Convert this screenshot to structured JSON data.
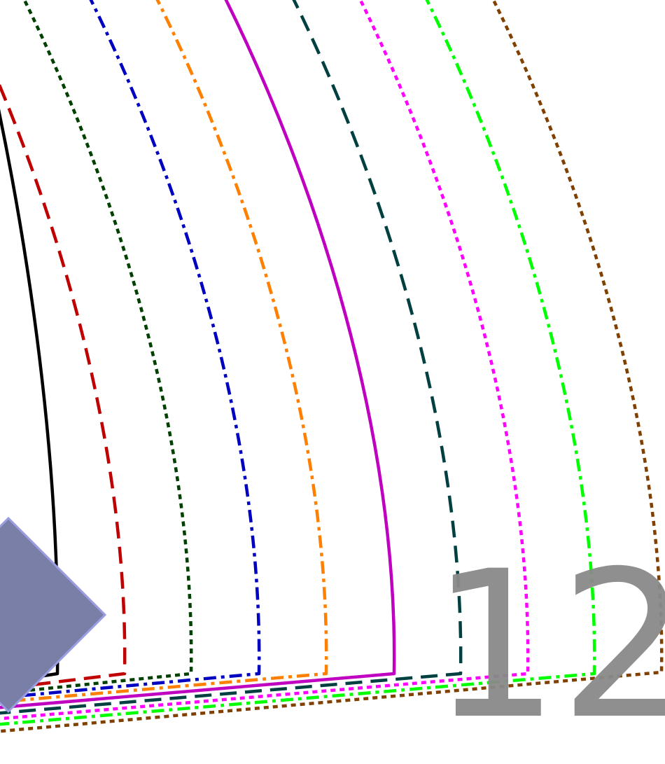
{
  "figure": {
    "page_number": "12",
    "curves": [
      {
        "color": "#000000",
        "dash": "solid"
      },
      {
        "color": "#c00000",
        "dash": "long-dash"
      },
      {
        "color": "#004000",
        "dash": "dotted"
      },
      {
        "color": "#0000c0",
        "dash": "dash-dot"
      },
      {
        "color": "#ff8000",
        "dash": "dash-dot"
      },
      {
        "color": "#c000c0",
        "dash": "solid"
      },
      {
        "color": "#004040",
        "dash": "long-dash"
      },
      {
        "color": "#ff00ff",
        "dash": "dotted"
      },
      {
        "color": "#00ff00",
        "dash": "dash-dot"
      },
      {
        "color": "#804000",
        "dash": "dotted"
      }
    ],
    "marker": {
      "shape": "diamond",
      "color": "#7a7fa8"
    }
  }
}
